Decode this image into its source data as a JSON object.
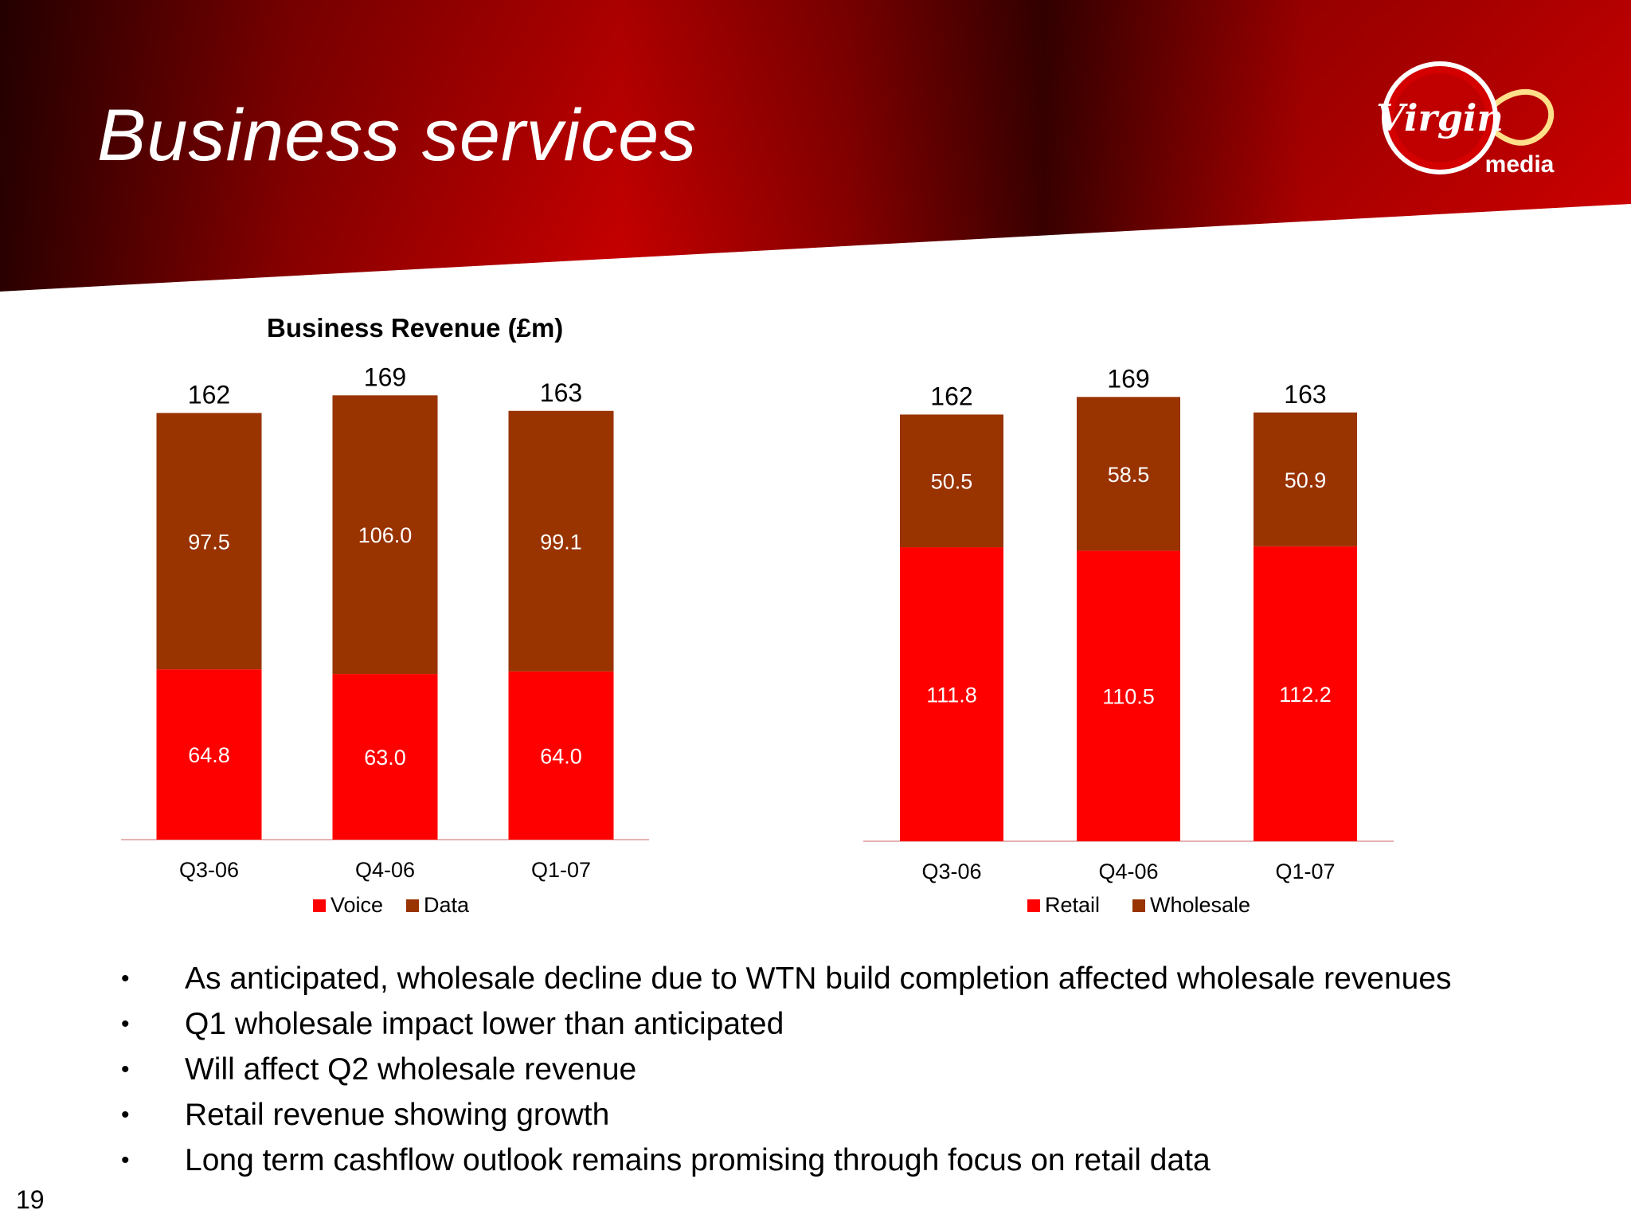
{
  "slide": {
    "title": "Business services",
    "page_number": "19",
    "logo": {
      "brand": "Virgin",
      "word": "media",
      "icon": "virgin-media-logo"
    },
    "colors": {
      "header_red": "#c30000",
      "header_dark": "#3a0000",
      "voice_retail": "#ff0000",
      "data_wholesale": "#993300"
    }
  },
  "bullets": [
    "As anticipated, wholesale decline due to WTN build completion affected wholesale revenues",
    "Q1 wholesale impact lower than anticipated",
    "Will affect Q2 wholesale revenue",
    "Retail revenue showing growth",
    "Long term cashflow outlook remains promising through focus on retail data"
  ],
  "chart_data": [
    {
      "type": "bar",
      "stacked": true,
      "title": "Business Revenue (£m)",
      "categories": [
        "Q3-06",
        "Q4-06",
        "Q1-07"
      ],
      "series": [
        {
          "name": "Voice",
          "color": "#ff0000",
          "values": [
            64.8,
            63.0,
            64.0
          ]
        },
        {
          "name": "Data",
          "color": "#993300",
          "values": [
            97.5,
            106.0,
            99.1
          ]
        }
      ],
      "totals": [
        162,
        169,
        163
      ],
      "value_labels": [
        [
          "64.8",
          "63.0",
          "64.0"
        ],
        [
          "97.5",
          "106.0",
          "99.1"
        ]
      ],
      "total_labels": [
        "162",
        "169",
        "163"
      ],
      "legend": "bottom",
      "grid": false
    },
    {
      "type": "bar",
      "stacked": true,
      "title": "",
      "categories": [
        "Q3-06",
        "Q4-06",
        "Q1-07"
      ],
      "series": [
        {
          "name": "Retail",
          "color": "#ff0000",
          "values": [
            111.8,
            110.5,
            112.2
          ]
        },
        {
          "name": "Wholesale",
          "color": "#993300",
          "values": [
            50.5,
            58.5,
            50.9
          ]
        }
      ],
      "totals": [
        162,
        169,
        163
      ],
      "value_labels": [
        [
          "111.8",
          "110.5",
          "112.2"
        ],
        [
          "50.5",
          "58.5",
          "50.9"
        ]
      ],
      "total_labels": [
        "162",
        "169",
        "163"
      ],
      "legend": "bottom",
      "grid": false
    }
  ]
}
